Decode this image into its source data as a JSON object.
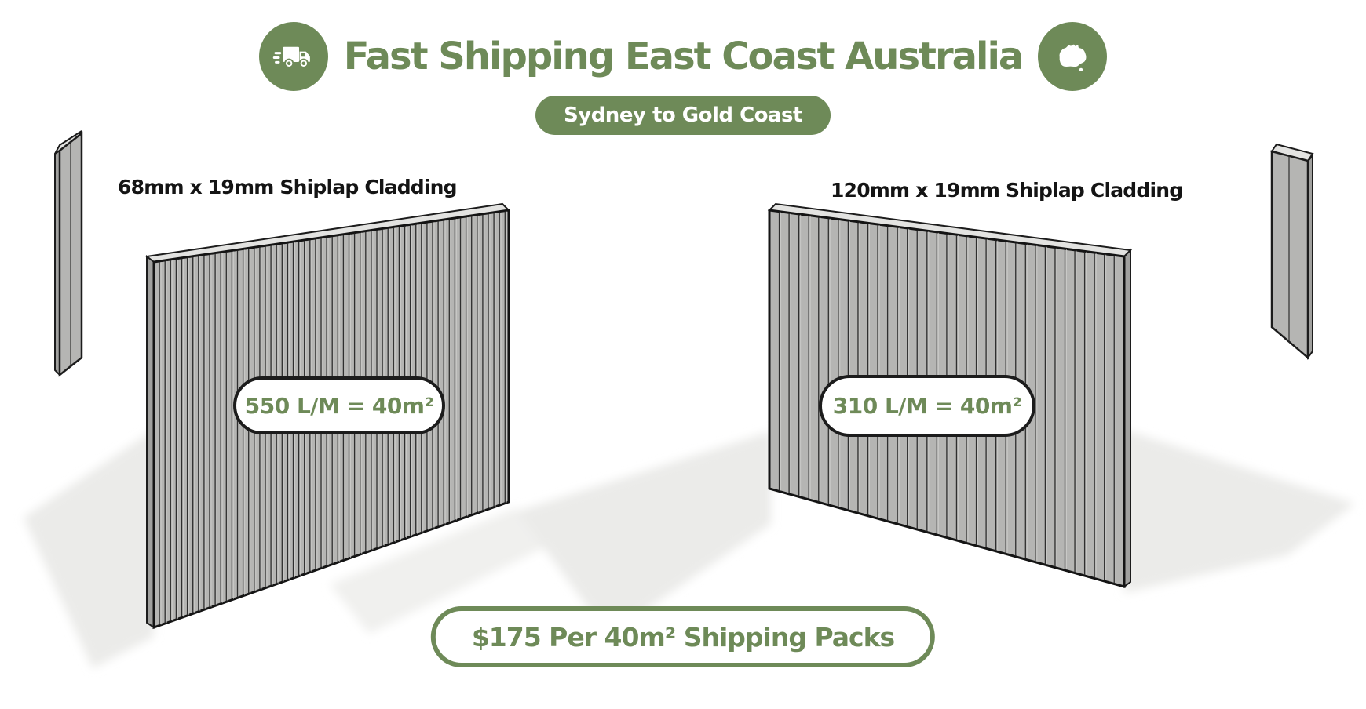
{
  "header": {
    "title": "Fast Shipping East Coast Australia",
    "route_pill": "Sydney to Gold Coast"
  },
  "products": [
    {
      "label": "68mm x 19mm Shiplap Cladding",
      "coverage": "550 L/M = 40m²"
    },
    {
      "label": "120mm x 19mm Shiplap Cladding",
      "coverage": "310 L/M = 40m²"
    }
  ],
  "footer": {
    "price_pill": "$175 Per 40m² Shipping Packs"
  },
  "icons": [
    {
      "name": "truck-icon"
    },
    {
      "name": "australia-map-icon"
    }
  ],
  "colors": {
    "accent_green": "#6e8a58",
    "wall_gray": "#b5b5b3",
    "outline_dark": "#1c1c1c",
    "label_text": "#141414",
    "shadow_gray": "#ebebe9"
  }
}
